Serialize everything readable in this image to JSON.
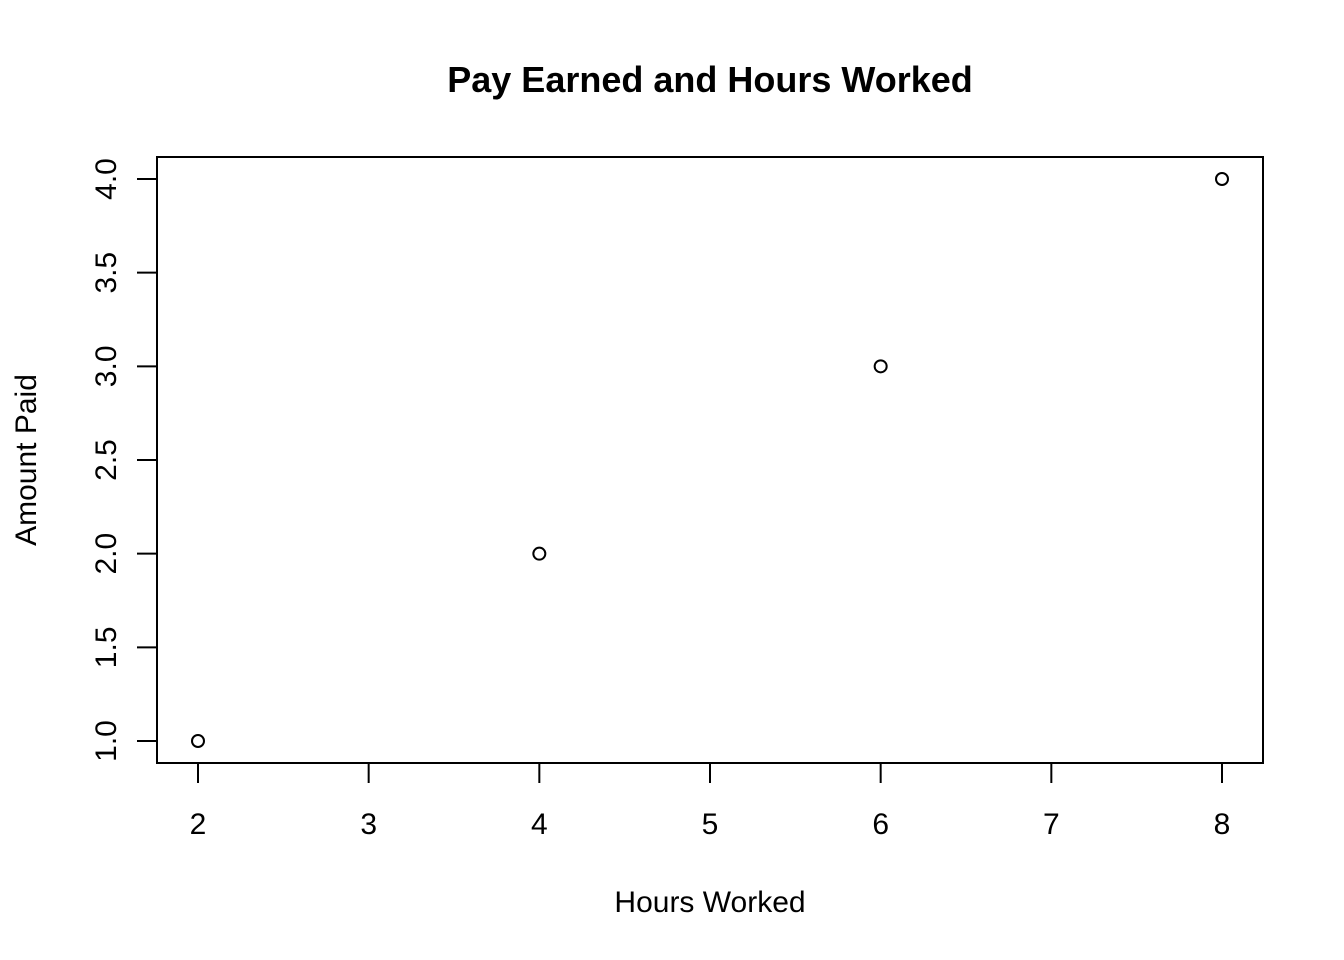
{
  "chart_data": {
    "type": "scatter",
    "title": "Pay Earned and Hours Worked",
    "xlabel": "Hours Worked",
    "ylabel": "Amount Paid",
    "x": [
      2,
      4,
      6,
      8
    ],
    "y": [
      1,
      2,
      3,
      4
    ],
    "xlim": [
      2,
      8
    ],
    "ylim": [
      1,
      4
    ],
    "xticks": [
      "2",
      "3",
      "4",
      "5",
      "6",
      "7",
      "8"
    ],
    "yticks": [
      "1.0",
      "1.5",
      "2.0",
      "2.5",
      "3.0",
      "3.5",
      "4.0"
    ],
    "grid": false,
    "marker": "open-circle",
    "colors": {
      "foreground": "#000000",
      "background": "#ffffff"
    }
  }
}
